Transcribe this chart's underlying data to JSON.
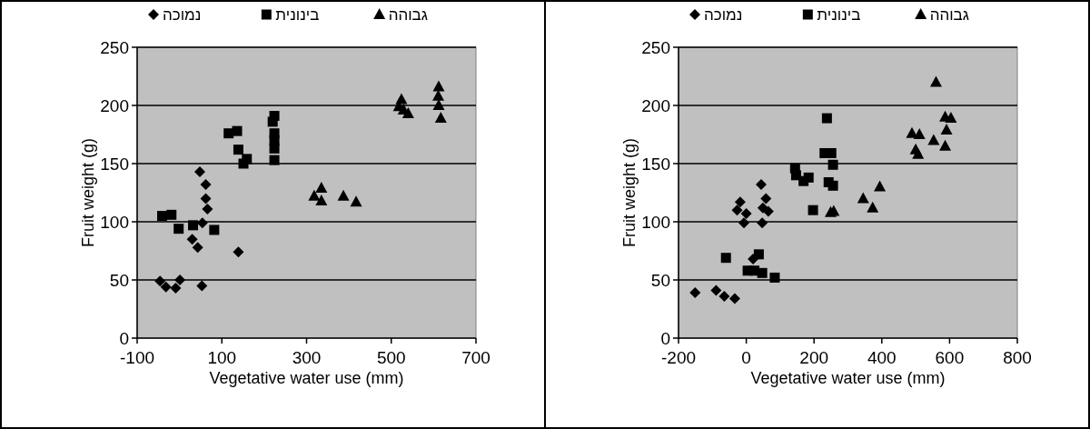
{
  "chart_data": [
    {
      "type": "scatter",
      "xlabel": "Vegetative water use (mm)",
      "ylabel": "Fruit weight (g)",
      "xlim": [
        -100,
        700
      ],
      "xticks": [
        -100,
        100,
        300,
        500,
        700
      ],
      "ylim": [
        0,
        250
      ],
      "yticks": [
        0,
        50,
        100,
        150,
        200,
        250
      ],
      "grid": "y",
      "legend": "top",
      "series": [
        {
          "name": "נמוכה",
          "color": "#000000",
          "marker": "diamond",
          "x": [
            48,
            62,
            62,
            66,
            54,
            30,
            43,
            139,
            -46,
            -32,
            -9,
            1,
            53
          ],
          "values": [
            143,
            132,
            120,
            111,
            99,
            85,
            78,
            74,
            49,
            44,
            43,
            50,
            45
          ]
        },
        {
          "name": "בינונית",
          "color": "#000000",
          "marker": "square",
          "x": [
            -41,
            -19,
            -2,
            32,
            82,
            116,
            136,
            139,
            159,
            151,
            224,
            220,
            224,
            224,
            224,
            224
          ],
          "values": [
            105,
            106,
            94,
            97,
            93,
            176,
            178,
            162,
            154,
            150,
            191,
            186,
            176,
            170,
            163,
            153
          ]
        },
        {
          "name": "גבוהה",
          "color": "#000000",
          "marker": "triangle",
          "x": [
            335,
            318,
            335,
            387,
            417,
            524,
            529,
            540,
            518,
            612,
            611,
            612,
            617
          ],
          "values": [
            129,
            122,
            118,
            122,
            117,
            205,
            196,
            193,
            199,
            216,
            208,
            200,
            189
          ]
        }
      ]
    },
    {
      "type": "scatter",
      "xlabel": "Vegetative water use (mm)",
      "ylabel": "Fruit weight (g)",
      "xlim": [
        -200,
        800
      ],
      "xticks": [
        -200,
        0,
        200,
        400,
        600,
        800
      ],
      "ylim": [
        0,
        250
      ],
      "yticks": [
        0,
        50,
        100,
        150,
        200,
        250
      ],
      "grid": "y",
      "legend": "top",
      "series": [
        {
          "name": "נמוכה",
          "color": "#000000",
          "marker": "diamond",
          "x": [
            -151,
            -89,
            -65,
            -34,
            -18,
            -27,
            0,
            -7,
            44,
            58,
            49,
            65,
            47,
            20
          ],
          "values": [
            39,
            41,
            36,
            34,
            117,
            110,
            107,
            99,
            132,
            120,
            112,
            109,
            99,
            68
          ]
        },
        {
          "name": "בינונית",
          "color": "#000000",
          "marker": "square",
          "x": [
            -60,
            4,
            24,
            37,
            47,
            84,
            144,
            147,
            169,
            184,
            197,
            238,
            231,
            251,
            256,
            243,
            256
          ],
          "values": [
            69,
            58,
            58,
            72,
            56,
            52,
            146,
            140,
            135,
            138,
            110,
            189,
            159,
            159,
            149,
            134,
            131
          ]
        },
        {
          "name": "גבוהה",
          "color": "#000000",
          "marker": "triangle",
          "x": [
            249,
            258,
            345,
            373,
            394,
            560,
            489,
            511,
            500,
            507,
            553,
            587,
            604,
            591,
            587
          ],
          "values": [
            108,
            109,
            120,
            112,
            130,
            220,
            176,
            175,
            162,
            158,
            170,
            190,
            189,
            179,
            165
          ]
        }
      ]
    }
  ]
}
